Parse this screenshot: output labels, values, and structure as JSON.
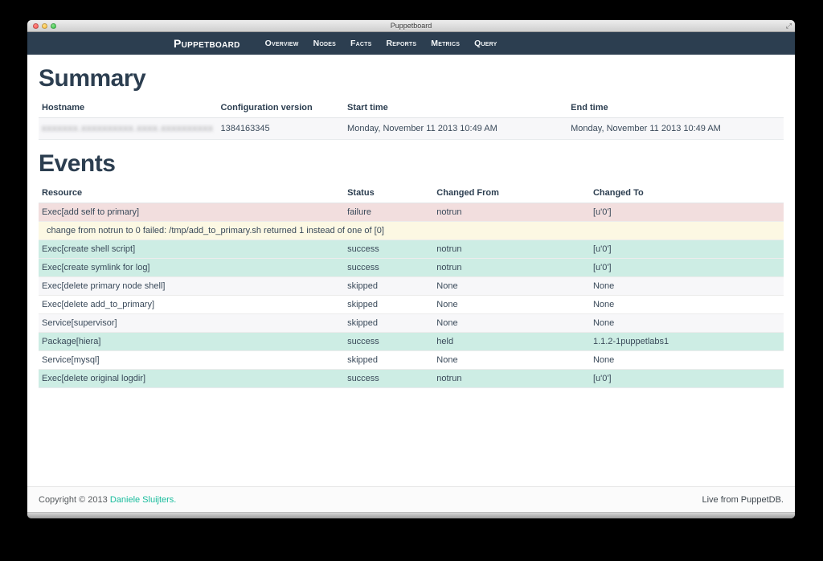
{
  "window": {
    "title": "Puppetboard"
  },
  "navbar": {
    "brand": "Puppetboard",
    "items": [
      "Overview",
      "Nodes",
      "Facts",
      "Reports",
      "Metrics",
      "Query"
    ]
  },
  "summary": {
    "heading": "Summary",
    "columns": [
      "Hostname",
      "Configuration version",
      "Start time",
      "End time"
    ],
    "row": {
      "hostname_redacted": true,
      "hostname_display": "xxxxxxx.xxxxxxxxxx.xxxx.xxxxxxxxxx",
      "configuration_version": "1384163345",
      "start_time": "Monday, November 11 2013 10:49 AM",
      "end_time": "Monday, November 11 2013 10:49 AM"
    }
  },
  "events": {
    "heading": "Events",
    "columns": [
      "Resource",
      "Status",
      "Changed From",
      "Changed To"
    ],
    "rows": [
      {
        "type": "failure",
        "resource": "Exec[add self to primary]",
        "status": "failure",
        "changed_from": "notrun",
        "changed_to": "[u'0']"
      },
      {
        "type": "message",
        "message": "change from notrun to 0 failed: /tmp/add_to_primary.sh returned 1 instead of one of [0]"
      },
      {
        "type": "success",
        "resource": "Exec[create shell script]",
        "status": "success",
        "changed_from": "notrun",
        "changed_to": "[u'0']"
      },
      {
        "type": "success",
        "resource": "Exec[create symlink for log]",
        "status": "success",
        "changed_from": "notrun",
        "changed_to": "[u'0']"
      },
      {
        "type": "stripe",
        "resource": "Exec[delete primary node shell]",
        "status": "skipped",
        "changed_from": "None",
        "changed_to": "None"
      },
      {
        "type": "plain",
        "resource": "Exec[delete add_to_primary]",
        "status": "skipped",
        "changed_from": "None",
        "changed_to": "None"
      },
      {
        "type": "stripe",
        "resource": "Service[supervisor]",
        "status": "skipped",
        "changed_from": "None",
        "changed_to": "None"
      },
      {
        "type": "success",
        "resource": "Package[hiera]",
        "status": "success",
        "changed_from": "held",
        "changed_to": "1.1.2-1puppetlabs1"
      },
      {
        "type": "plain",
        "resource": "Service[mysql]",
        "status": "skipped",
        "changed_from": "None",
        "changed_to": "None"
      },
      {
        "type": "success",
        "resource": "Exec[delete original logdir]",
        "status": "success",
        "changed_from": "notrun",
        "changed_to": "[u'0']"
      }
    ]
  },
  "footer": {
    "copyright_prefix": "Copyright © 2013 ",
    "copyright_link": "Daniele Sluijters.",
    "live_text": "Live from PuppetDB."
  },
  "colors": {
    "navbar_bg": "#2C3E50",
    "heading": "#2C3E50",
    "link_teal": "#18BC9C",
    "failure_row_bg": "#F2DEDE",
    "message_row_bg": "#FCF8E3",
    "success_row_bg": "#CDEDE4",
    "stripe_row_bg": "#F7F7F9"
  }
}
